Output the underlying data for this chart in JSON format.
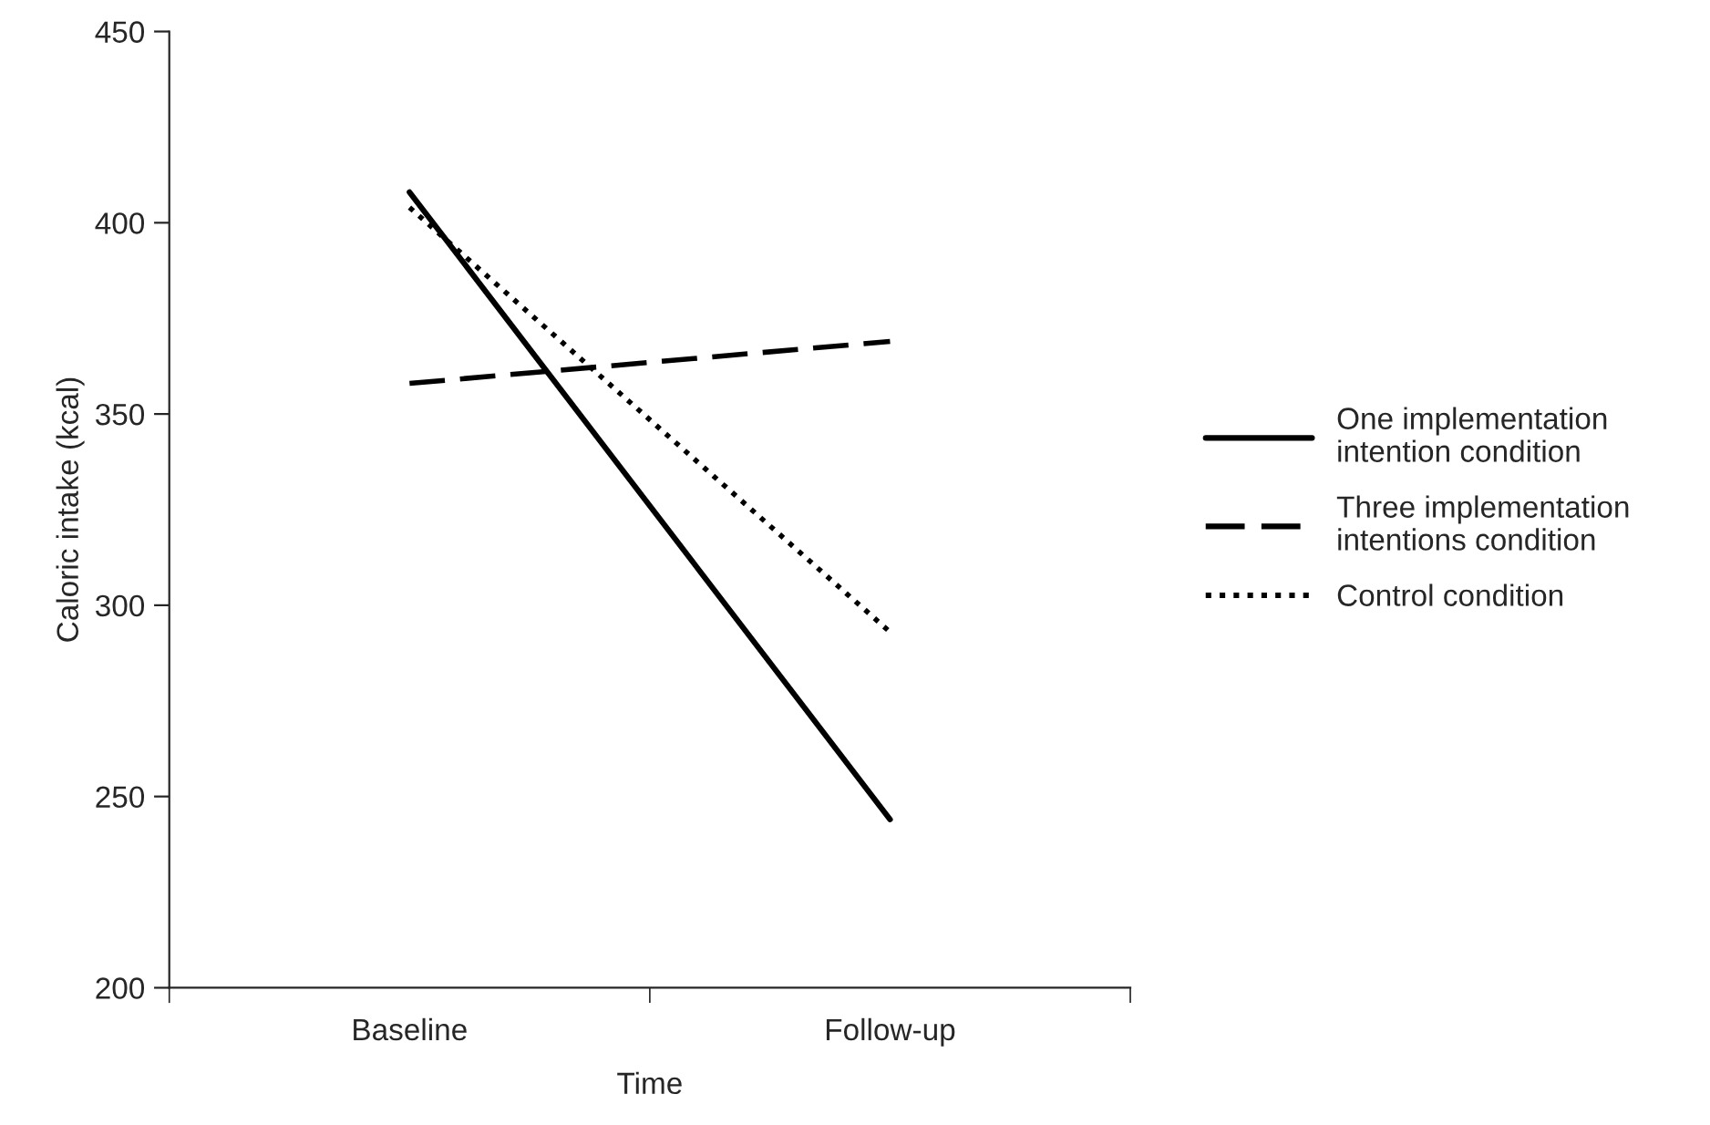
{
  "chart_data": {
    "type": "line",
    "xlabel": "Time",
    "ylabel": "Caloric intake (kcal)",
    "categories": [
      "Baseline",
      "Follow-up"
    ],
    "series": [
      {
        "name": "One implementation\nintention condition",
        "color": "#000000",
        "line_style": "solid",
        "values": [
          408,
          244
        ]
      },
      {
        "name": "Three implementation\nintentions condition",
        "color": "#000000",
        "line_style": "dashed",
        "values": [
          358,
          369
        ]
      },
      {
        "name": "Control condition",
        "color": "#000000",
        "line_style": "dotted",
        "values": [
          404,
          293
        ]
      }
    ],
    "ylim": [
      200,
      450
    ],
    "yticks": [
      200,
      250,
      300,
      350,
      400,
      450
    ],
    "grid": false,
    "legend": "right",
    "marker": "none"
  }
}
